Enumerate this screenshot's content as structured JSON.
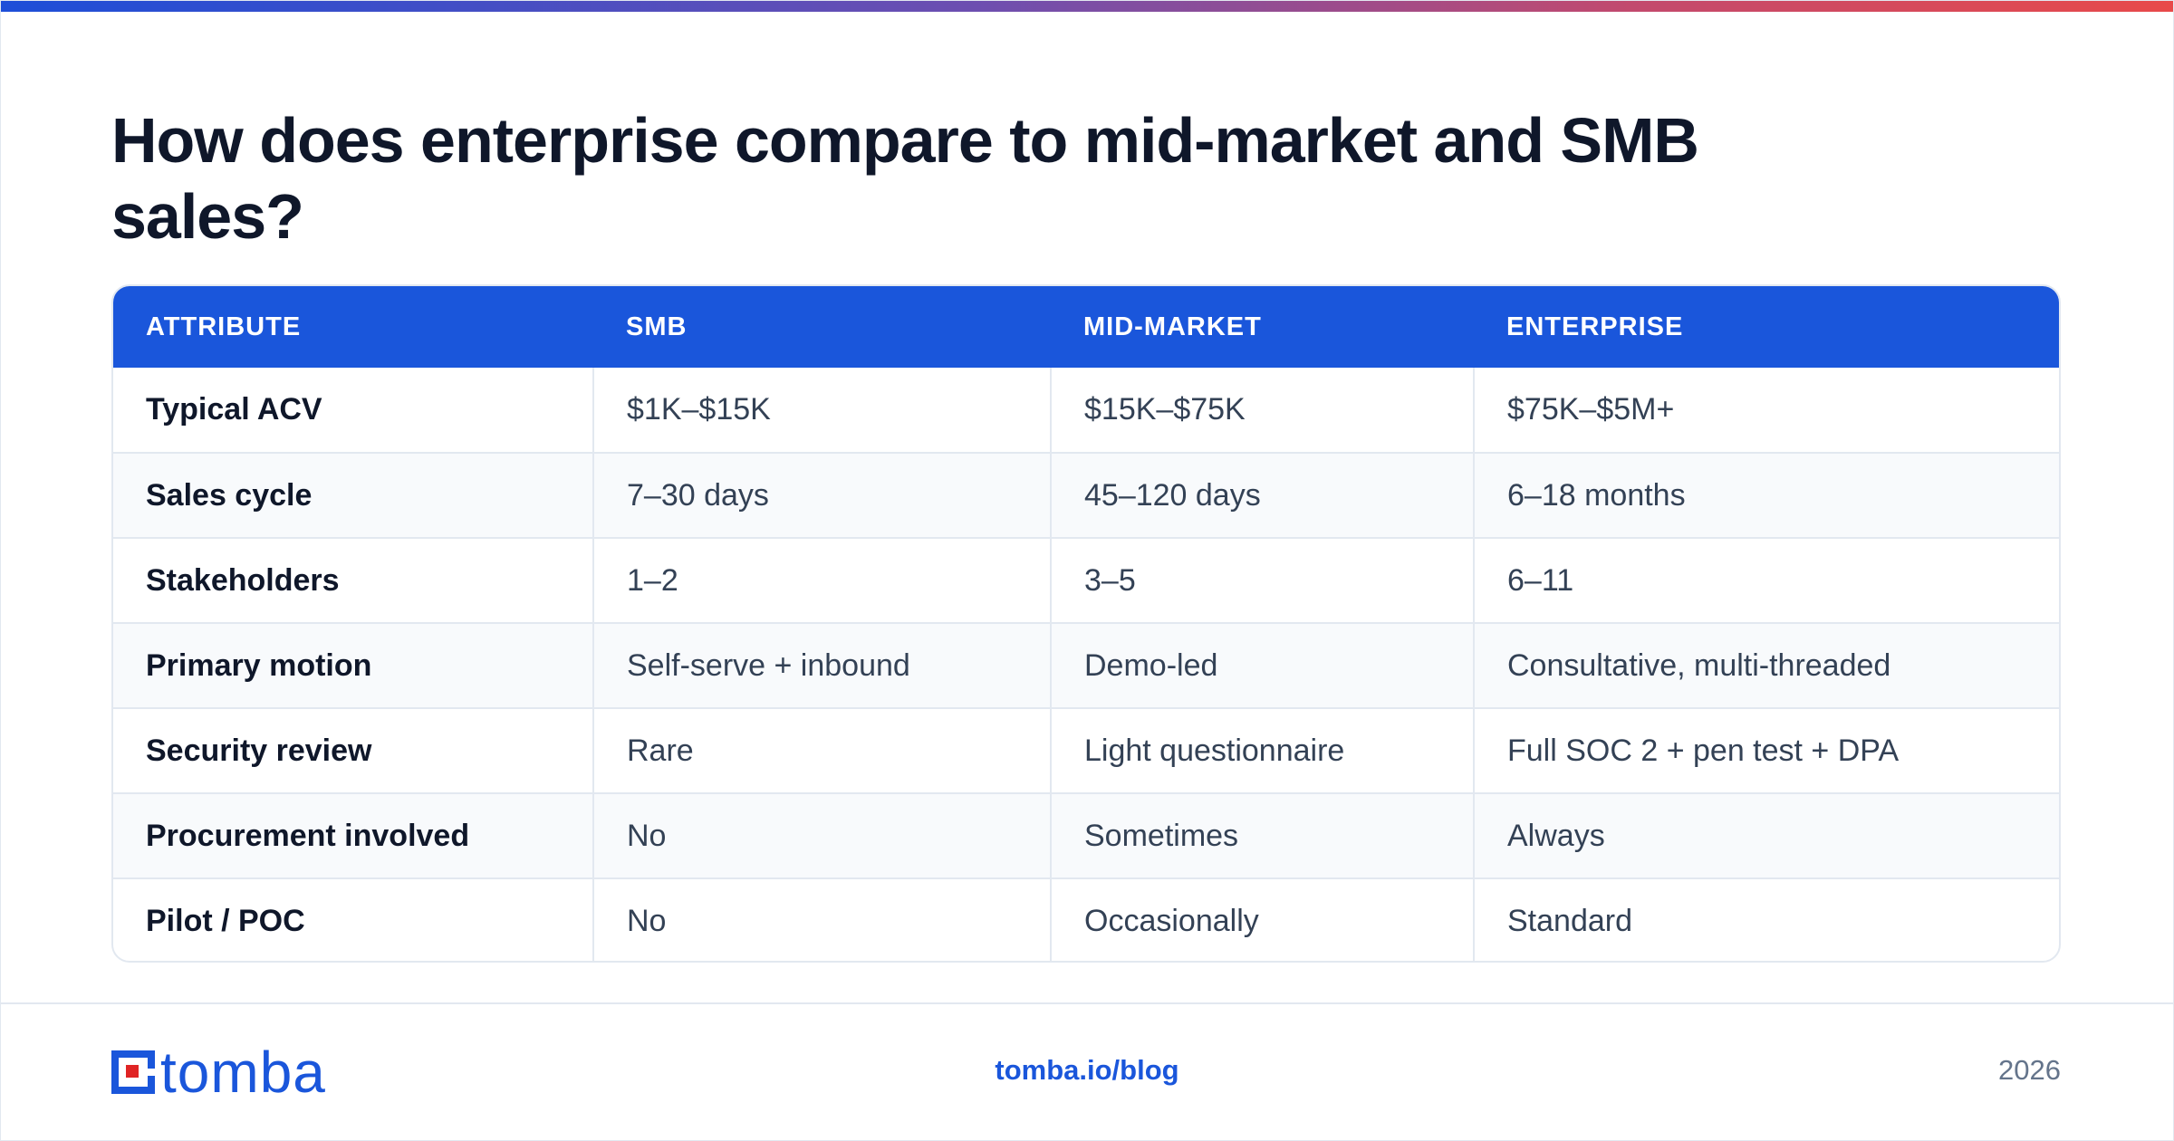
{
  "title": "How does enterprise compare to mid-market and SMB sales?",
  "colors": {
    "accent": "#1a56db",
    "header_bg": "#1a56db",
    "logo_red": "#e02424"
  },
  "table": {
    "headers": [
      "ATTRIBUTE",
      "SMB",
      "MID-MARKET",
      "ENTERPRISE"
    ],
    "rows": [
      [
        "Typical ACV",
        "$1K–$15K",
        "$15K–$75K",
        "$75K–$5M+"
      ],
      [
        "Sales cycle",
        "7–30 days",
        "45–120 days",
        "6–18 months"
      ],
      [
        "Stakeholders",
        "1–2",
        "3–5",
        "6–11"
      ],
      [
        "Primary motion",
        "Self-serve + inbound",
        "Demo-led",
        "Consultative, multi-threaded"
      ],
      [
        "Security review",
        "Rare",
        "Light questionnaire",
        "Full SOC 2 + pen test + DPA"
      ],
      [
        "Procurement involved",
        "No",
        "Sometimes",
        "Always"
      ],
      [
        "Pilot / POC",
        "No",
        "Occasionally",
        "Standard"
      ]
    ]
  },
  "footer": {
    "logo_text": "tomba",
    "url": "tomba.io/blog",
    "year": "2026"
  }
}
